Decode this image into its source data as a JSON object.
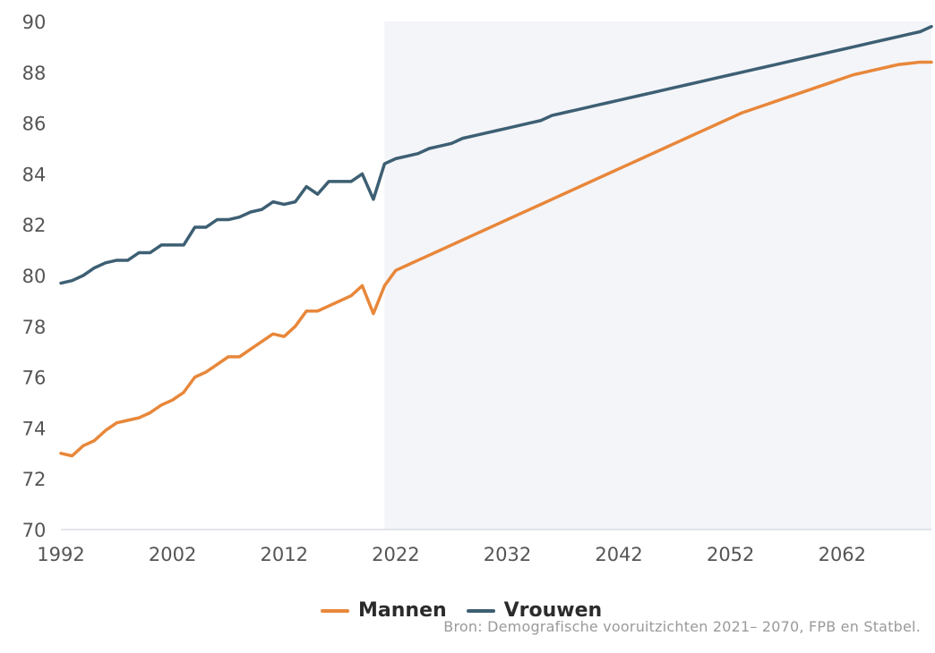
{
  "chart_data": {
    "type": "line",
    "title": "",
    "xlabel": "",
    "ylabel": "",
    "xlim": [
      1992,
      2070
    ],
    "ylim": [
      70,
      90
    ],
    "x_ticks": [
      "1992",
      "2002",
      "2012",
      "2022",
      "2032",
      "2042",
      "2052",
      "2062"
    ],
    "y_ticks": [
      "70",
      "72",
      "74",
      "76",
      "78",
      "80",
      "82",
      "84",
      "86",
      "88",
      "90"
    ],
    "grid": false,
    "legend_position": "bottom",
    "projection_shaded_from": 2021,
    "projection_shade_color": "#f4f5f9",
    "x": [
      1992,
      1993,
      1994,
      1995,
      1996,
      1997,
      1998,
      1999,
      2000,
      2001,
      2002,
      2003,
      2004,
      2005,
      2006,
      2007,
      2008,
      2009,
      2010,
      2011,
      2012,
      2013,
      2014,
      2015,
      2016,
      2017,
      2018,
      2019,
      2020,
      2021,
      2022,
      2023,
      2024,
      2025,
      2026,
      2027,
      2028,
      2029,
      2030,
      2031,
      2032,
      2033,
      2034,
      2035,
      2036,
      2037,
      2038,
      2039,
      2040,
      2041,
      2042,
      2043,
      2044,
      2045,
      2046,
      2047,
      2048,
      2049,
      2050,
      2051,
      2052,
      2053,
      2054,
      2055,
      2056,
      2057,
      2058,
      2059,
      2060,
      2061,
      2062,
      2063,
      2064,
      2065,
      2066,
      2067,
      2068,
      2069,
      2070
    ],
    "series": [
      {
        "name": "Mannen",
        "color": "#e8873a",
        "values": [
          73.0,
          72.9,
          73.3,
          73.5,
          73.9,
          74.2,
          74.3,
          74.4,
          74.6,
          74.9,
          75.1,
          75.4,
          76.0,
          76.2,
          76.5,
          76.8,
          76.8,
          77.1,
          77.4,
          77.7,
          77.6,
          78.0,
          78.6,
          78.6,
          78.8,
          79.0,
          79.2,
          79.6,
          78.5,
          79.6,
          80.2,
          80.4,
          80.6,
          80.8,
          81.0,
          81.2,
          81.4,
          81.6,
          81.8,
          82.0,
          82.2,
          82.4,
          82.6,
          82.8,
          83.0,
          83.2,
          83.4,
          83.6,
          83.8,
          84.0,
          84.2,
          84.4,
          84.6,
          84.8,
          85.0,
          85.2,
          85.4,
          85.6,
          85.8,
          86.0,
          86.2,
          86.4,
          86.55,
          86.7,
          86.85,
          87.0,
          87.15,
          87.3,
          87.45,
          87.6,
          87.75,
          87.9,
          88.0,
          88.1,
          88.2,
          88.3,
          88.35,
          88.4,
          88.4
        ]
      },
      {
        "name": "Vrouwen",
        "color": "#3d5f73",
        "values": [
          79.7,
          79.8,
          80.0,
          80.3,
          80.5,
          80.6,
          80.6,
          80.9,
          80.9,
          81.2,
          81.2,
          81.2,
          81.9,
          81.9,
          82.2,
          82.2,
          82.3,
          82.5,
          82.6,
          82.9,
          82.8,
          82.9,
          83.5,
          83.2,
          83.7,
          83.7,
          83.7,
          84.0,
          83.0,
          84.4,
          84.6,
          84.7,
          84.8,
          85.0,
          85.1,
          85.2,
          85.4,
          85.5,
          85.6,
          85.7,
          85.8,
          85.9,
          86.0,
          86.1,
          86.3,
          86.4,
          86.5,
          86.6,
          86.7,
          86.8,
          86.9,
          87.0,
          87.1,
          87.2,
          87.3,
          87.4,
          87.5,
          87.6,
          87.7,
          87.8,
          87.9,
          88.0,
          88.1,
          88.2,
          88.3,
          88.4,
          88.5,
          88.6,
          88.7,
          88.8,
          88.9,
          89.0,
          89.1,
          89.2,
          89.3,
          89.4,
          89.5,
          89.6,
          89.8
        ]
      }
    ]
  },
  "legend": {
    "items": [
      {
        "label": "Mannen",
        "color": "#e8873a"
      },
      {
        "label": "Vrouwen",
        "color": "#3d5f73"
      }
    ]
  },
  "source_text": "Bron: Demografische vooruitzichten 2021– 2070, FPB en Statbel."
}
